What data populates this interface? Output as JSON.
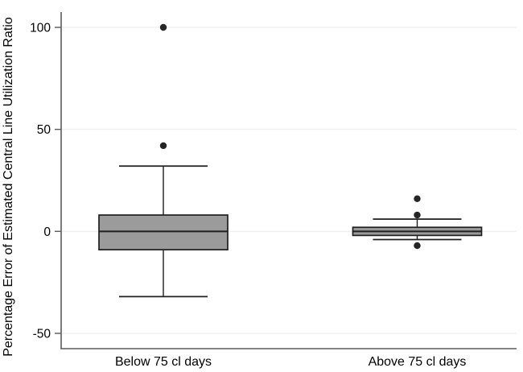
{
  "window": {
    "background": "#ffffff"
  },
  "chart_data": {
    "type": "boxplot",
    "title": "",
    "ylabel": "Percentage Error of Estimated Central Line Utilization Ratio",
    "xlabel": "",
    "categories": [
      "Below 75 cl days",
      "Above 75 cl days"
    ],
    "series": [
      {
        "name": "Below 75 cl days",
        "whisker_low": -32,
        "q1": -9,
        "median": 0,
        "q3": 8,
        "whisker_high": 32,
        "outliers": [
          42,
          100
        ]
      },
      {
        "name": "Above 75 cl days",
        "whisker_low": -4,
        "q1": -2,
        "median": 0,
        "q3": 2,
        "whisker_high": 6,
        "outliers": [
          16,
          8,
          -7
        ]
      }
    ],
    "yticks": [
      -50,
      0,
      50,
      100
    ],
    "ytick_labels": [
      "-50",
      "0",
      "50",
      "100"
    ],
    "ylim": [
      -57.5,
      107.5
    ],
    "grid": true,
    "legend": "none",
    "colors": {
      "box_fill": "#9b9b9b",
      "box_border": "#1f1f1f",
      "median": "#1f1f1f",
      "whisker": "#1f1f1f",
      "outlier": "#262626",
      "axis": "#5a5a5a",
      "gridline": "#f0f0f0",
      "text": "#000000"
    }
  }
}
